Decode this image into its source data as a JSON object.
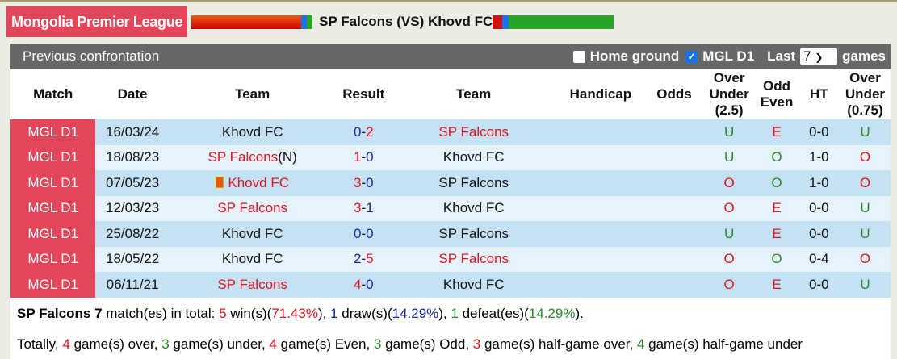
{
  "header": {
    "league": "Mongolia Premier League",
    "home": "SP Falcons",
    "vs": "VS",
    "away": "Khovd FC"
  },
  "panel": {
    "title": "Previous confrontation",
    "home_ground": "Home ground",
    "home_ground_checked": false,
    "league_filter": "MGL D1",
    "league_checked": true,
    "last": "Last",
    "last_value": "7",
    "games": "games"
  },
  "columns": [
    "Match",
    "Date",
    "Team",
    "Result",
    "Team",
    "Handicap",
    "Odds",
    "Over Under (2.5)",
    "Odd Even",
    "HT",
    "Over Under (0.75)"
  ],
  "rows": [
    {
      "match": "MGL D1",
      "date": "16/03/24",
      "home": "Khovd FC",
      "home_red": false,
      "hs": "0",
      "as": "2",
      "away": "SP Falcons",
      "away_red": true,
      "ou": "U",
      "oe": "E",
      "ht": "0-0",
      "ou2": "U"
    },
    {
      "match": "MGL D1",
      "date": "18/08/23",
      "home": "SP Falcons",
      "home_suffix": "(N)",
      "home_red": true,
      "hs": "1",
      "as": "0",
      "away": "Khovd FC",
      "away_red": false,
      "ou": "U",
      "oe": "O",
      "ht": "1-0",
      "ou2": "O"
    },
    {
      "match": "MGL D1",
      "date": "07/05/23",
      "home": "Khovd FC",
      "home_flag": true,
      "home_red": true,
      "hs": "3",
      "as": "0",
      "away": "SP Falcons",
      "away_red": false,
      "ou": "O",
      "oe": "O",
      "ht": "1-0",
      "ou2": "O"
    },
    {
      "match": "MGL D1",
      "date": "12/03/23",
      "home": "SP Falcons",
      "home_red": true,
      "hs": "3",
      "as": "1",
      "away": "Khovd FC",
      "away_red": false,
      "ou": "O",
      "oe": "E",
      "ht": "0-0",
      "ou2": "U"
    },
    {
      "match": "MGL D1",
      "date": "25/08/22",
      "home": "Khovd FC",
      "home_red": false,
      "hs": "0",
      "as": "0",
      "away": "SP Falcons",
      "away_red": false,
      "ou": "U",
      "oe": "E",
      "ht": "0-0",
      "ou2": "U"
    },
    {
      "match": "MGL D1",
      "date": "18/05/22",
      "home": "Khovd FC",
      "home_red": false,
      "hs": "2",
      "as": "5",
      "away": "SP Falcons",
      "away_red": true,
      "ou": "O",
      "oe": "O",
      "ht": "0-4",
      "ou2": "O"
    },
    {
      "match": "MGL D1",
      "date": "06/11/21",
      "home": "SP Falcons",
      "home_red": true,
      "hs": "4",
      "as": "0",
      "away": "Khovd FC",
      "away_red": false,
      "ou": "O",
      "oe": "E",
      "ht": "0-0",
      "ou2": "U"
    }
  ],
  "summary": {
    "team": "SP Falcons",
    "count": "7",
    "t1": " match(es) in total: ",
    "wins": "5",
    "wins_pct": "71.43%",
    "draws": "1",
    "draws_pct": "14.29%",
    "defeats": "1",
    "defeats_pct": "14.29%",
    "line2": [
      [
        "",
        "Totally, "
      ],
      [
        "r",
        "4"
      ],
      [
        "",
        " game(s) over, "
      ],
      [
        "g",
        "3"
      ],
      [
        "",
        " game(s) under, "
      ],
      [
        "r",
        "4"
      ],
      [
        "",
        " game(s) Even, "
      ],
      [
        "g",
        "3"
      ],
      [
        "",
        " game(s) Odd, "
      ],
      [
        "r",
        "3"
      ],
      [
        "",
        " game(s) half-game over, "
      ],
      [
        "g",
        "4"
      ],
      [
        "",
        " game(s) half-game under"
      ]
    ]
  },
  "colors": {
    "league_bg": "#e2465b",
    "red": "#e0141e",
    "blue": "#1a26a0",
    "green": "#2a8a2a"
  }
}
